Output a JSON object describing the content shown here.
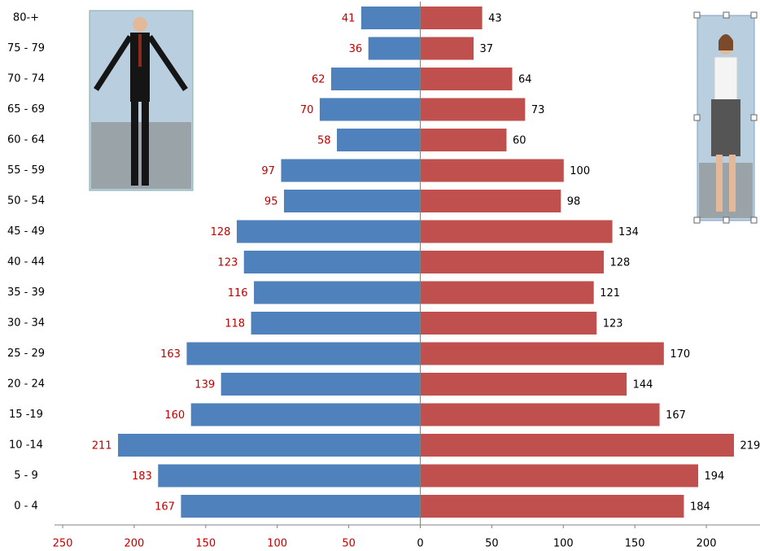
{
  "chart_data": {
    "type": "pyramid",
    "categories": [
      "0 - 4",
      "5 - 9",
      "10 -14",
      "15 -19",
      "20 - 24",
      "25 - 29",
      "30 - 34",
      "35 - 39",
      "40 - 44",
      "45 - 49",
      "50 - 54",
      "55 - 59",
      "60 - 64",
      "65 - 69",
      "70 - 74",
      "75 - 79",
      "80-+"
    ],
    "series": [
      {
        "color": "#4f81bd",
        "label_color": "#c00000",
        "values": [
          -167,
          -183,
          -211,
          -160,
          -139,
          -163,
          -118,
          -116,
          -123,
          -128,
          -95,
          -97,
          -58,
          -70,
          -62,
          -36,
          -41
        ],
        "value_labels": [
          "167",
          "183",
          "211",
          "160",
          "139",
          "163",
          "118",
          "116",
          "123",
          "128",
          "95",
          "97",
          "58",
          "70",
          "62",
          "36",
          "41"
        ]
      },
      {
        "color": "#c0504d",
        "label_color": "#000000",
        "values": [
          184,
          194,
          219,
          167,
          144,
          170,
          123,
          121,
          128,
          134,
          98,
          100,
          60,
          73,
          64,
          37,
          43
        ]
      }
    ],
    "xlim": [
      -250,
      237.5
    ],
    "xticks": [
      {
        "value": -250,
        "label": "250"
      },
      {
        "value": -200,
        "label": "200"
      },
      {
        "value": -150,
        "label": "150"
      },
      {
        "value": -100,
        "label": "100"
      },
      {
        "value": -50,
        "label": "50"
      },
      0,
      50,
      100,
      150,
      200
    ]
  }
}
